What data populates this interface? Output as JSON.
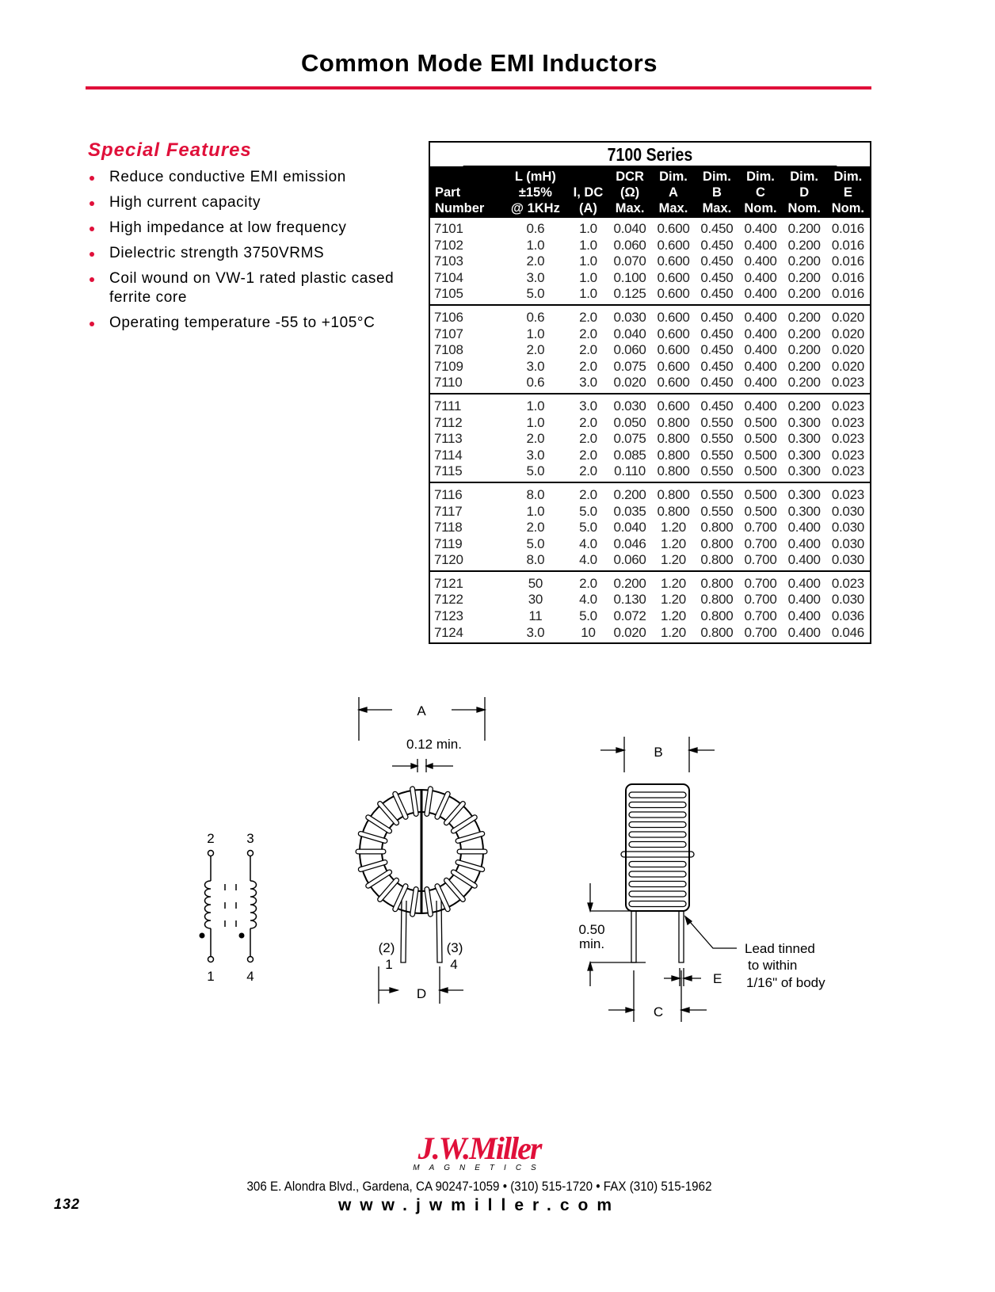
{
  "title": "Common Mode EMI Inductors",
  "accent_color": "#e0103a",
  "features": {
    "heading": "Special Features",
    "items": [
      "Reduce conductive EMI emission",
      "High current capacity",
      "High impedance at low frequency",
      "Dielectric strength 3750VRMS",
      "Coil wound on VW-1 rated plastic cased ferrite core",
      "Operating temperature -55 to +105°C"
    ]
  },
  "table": {
    "series_title": "7100 Series",
    "headers": [
      [
        "",
        "",
        "Part",
        "Number"
      ],
      [
        "",
        "L (mH)",
        "±15%",
        "@ 1KHz"
      ],
      [
        "",
        "",
        "I, DC",
        "(A)"
      ],
      [
        "",
        "DCR",
        "(Ω)",
        "Max."
      ],
      [
        "",
        "Dim.",
        "A",
        "Max."
      ],
      [
        "",
        "Dim.",
        "B",
        "Max."
      ],
      [
        "",
        "Dim.",
        "C",
        "Nom."
      ],
      [
        "",
        "Dim.",
        "D",
        "Nom."
      ],
      [
        "",
        "Dim.",
        "E",
        "Nom."
      ]
    ],
    "groups": [
      [
        [
          "7101",
          "0.6",
          "1.0",
          "0.040",
          "0.600",
          "0.450",
          "0.400",
          "0.200",
          "0.016"
        ],
        [
          "7102",
          "1.0",
          "1.0",
          "0.060",
          "0.600",
          "0.450",
          "0.400",
          "0.200",
          "0.016"
        ],
        [
          "7103",
          "2.0",
          "1.0",
          "0.070",
          "0.600",
          "0.450",
          "0.400",
          "0.200",
          "0.016"
        ],
        [
          "7104",
          "3.0",
          "1.0",
          "0.100",
          "0.600",
          "0.450",
          "0.400",
          "0.200",
          "0.016"
        ],
        [
          "7105",
          "5.0",
          "1.0",
          "0.125",
          "0.600",
          "0.450",
          "0.400",
          "0.200",
          "0.016"
        ]
      ],
      [
        [
          "7106",
          "0.6",
          "2.0",
          "0.030",
          "0.600",
          "0.450",
          "0.400",
          "0.200",
          "0.020"
        ],
        [
          "7107",
          "1.0",
          "2.0",
          "0.040",
          "0.600",
          "0.450",
          "0.400",
          "0.200",
          "0.020"
        ],
        [
          "7108",
          "2.0",
          "2.0",
          "0.060",
          "0.600",
          "0.450",
          "0.400",
          "0.200",
          "0.020"
        ],
        [
          "7109",
          "3.0",
          "2.0",
          "0.075",
          "0.600",
          "0.450",
          "0.400",
          "0.200",
          "0.020"
        ],
        [
          "7110",
          "0.6",
          "3.0",
          "0.020",
          "0.600",
          "0.450",
          "0.400",
          "0.200",
          "0.023"
        ]
      ],
      [
        [
          "7111",
          "1.0",
          "3.0",
          "0.030",
          "0.600",
          "0.450",
          "0.400",
          "0.200",
          "0.023"
        ],
        [
          "7112",
          "1.0",
          "2.0",
          "0.050",
          "0.800",
          "0.550",
          "0.500",
          "0.300",
          "0.023"
        ],
        [
          "7113",
          "2.0",
          "2.0",
          "0.075",
          "0.800",
          "0.550",
          "0.500",
          "0.300",
          "0.023"
        ],
        [
          "7114",
          "3.0",
          "2.0",
          "0.085",
          "0.800",
          "0.550",
          "0.500",
          "0.300",
          "0.023"
        ],
        [
          "7115",
          "5.0",
          "2.0",
          "0.110",
          "0.800",
          "0.550",
          "0.500",
          "0.300",
          "0.023"
        ]
      ],
      [
        [
          "7116",
          "8.0",
          "2.0",
          "0.200",
          "0.800",
          "0.550",
          "0.500",
          "0.300",
          "0.023"
        ],
        [
          "7117",
          "1.0",
          "5.0",
          "0.035",
          "0.800",
          "0.550",
          "0.500",
          "0.300",
          "0.030"
        ],
        [
          "7118",
          "2.0",
          "5.0",
          "0.040",
          "1.20",
          "0.800",
          "0.700",
          "0.400",
          "0.030"
        ],
        [
          "7119",
          "5.0",
          "4.0",
          "0.046",
          "1.20",
          "0.800",
          "0.700",
          "0.400",
          "0.030"
        ],
        [
          "7120",
          "8.0",
          "4.0",
          "0.060",
          "1.20",
          "0.800",
          "0.700",
          "0.400",
          "0.030"
        ]
      ],
      [
        [
          "7121",
          "50",
          "2.0",
          "0.200",
          "1.20",
          "0.800",
          "0.700",
          "0.400",
          "0.023"
        ],
        [
          "7122",
          "30",
          "4.0",
          "0.130",
          "1.20",
          "0.800",
          "0.700",
          "0.400",
          "0.030"
        ],
        [
          "7123",
          "11",
          "5.0",
          "0.072",
          "1.20",
          "0.800",
          "0.700",
          "0.400",
          "0.036"
        ],
        [
          "7124",
          "3.0",
          "10",
          "0.020",
          "1.20",
          "0.800",
          "0.700",
          "0.400",
          "0.046"
        ]
      ]
    ]
  },
  "diagrams": {
    "schematic": {
      "pin_top_left": "2",
      "pin_top_right": "3",
      "pin_bottom_left": "1",
      "pin_bottom_right": "4"
    },
    "front": {
      "dim_a": "A",
      "gap": "0.12 min.",
      "pin_left_paren": "(2)",
      "pin_right_paren": "(3)",
      "pin_left": "1",
      "pin_right": "4",
      "dim_d": "D"
    },
    "side": {
      "dim_b": "B",
      "lead_len_1": "0.50",
      "lead_len_2": "min.",
      "note_1": "Lead tinned",
      "note_2": "to within",
      "note_3": "1/16\" of body",
      "dim_e": "E",
      "dim_c": "C"
    }
  },
  "footer": {
    "logo_name": "J.W.Miller",
    "logo_sub": "MAGNETICS",
    "address": "306 E. Alondra Blvd., Gardena, CA 90247-1059 • (310) 515-1720 • FAX (310) 515-1962",
    "website": "www.jwmiller.com",
    "page_number": "132"
  }
}
